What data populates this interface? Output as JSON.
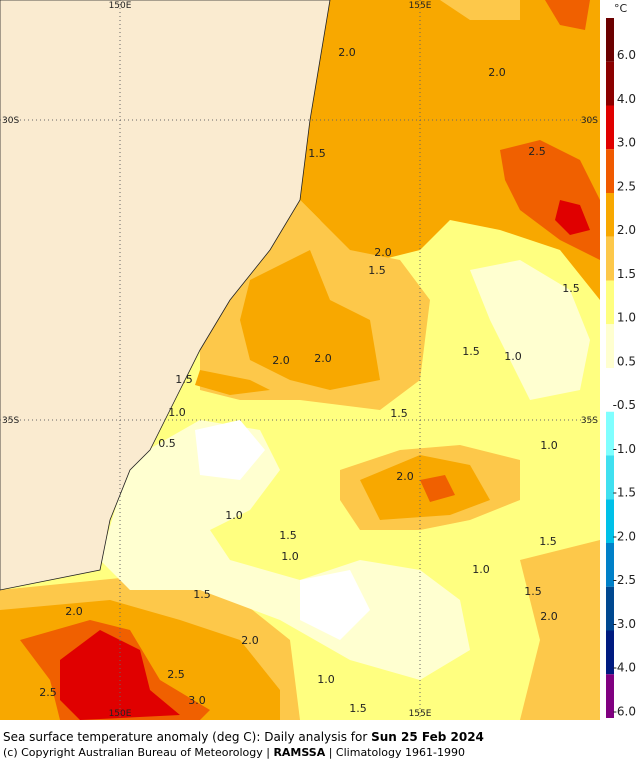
{
  "map": {
    "lon_labels": [
      "150E",
      "155E"
    ],
    "lat_labels": [
      "30S",
      "35S"
    ],
    "contour_labels": [
      "2.0",
      "2.0",
      "2.5",
      "1.5",
      "2.0",
      "1.5",
      "1.5",
      "2.0",
      "2.0",
      "1.5",
      "1.0",
      "1.5",
      "1.0",
      "1.5",
      "0.5",
      "1.0",
      "2.0",
      "1.0",
      "1.5",
      "1.0",
      "1.5",
      "1.0",
      "1.5",
      "1.5",
      "2.0",
      "2.0",
      "2.0",
      "2.5",
      "2.5",
      "3.0",
      "1.0",
      "1.5"
    ]
  },
  "colorbar": {
    "unit": "°C",
    "labels": [
      "6.0",
      "4.0",
      "3.0",
      "2.5",
      "2.0",
      "1.5",
      "1.0",
      "0.5",
      "-0.5",
      "-1.0",
      "-1.5",
      "-2.0",
      "-2.5",
      "-3.0",
      "-4.0",
      "-6.0"
    ]
  },
  "caption": {
    "line1": "Sea surface temperature anomaly (deg C): Daily analysis for ",
    "date": "Sun 25 Feb 2024",
    "line2_a": "(c) Copyright Australian Bureau of Meteorology | ",
    "line2_b": "RAMSSA",
    "line2_c": " | Climatology 1961-1990"
  }
}
